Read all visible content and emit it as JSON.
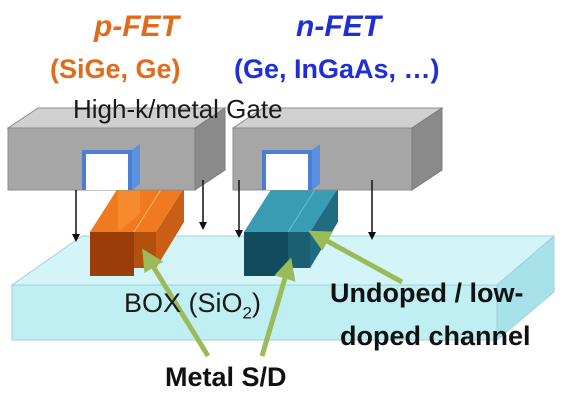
{
  "pfet": {
    "title": "p-FET",
    "materials": "(SiGe, Ge)"
  },
  "nfet": {
    "title": "n-FET",
    "materials": "(Ge, InGaAs, …)"
  },
  "gate": {
    "label": "High-k/metal Gate"
  },
  "box": {
    "label_prefix": "BOX (SiO",
    "label_sub": "2",
    "label_suffix": ")"
  },
  "channel": {
    "label_line1": "Undoped / low-",
    "label_line2": "doped channel"
  },
  "sd": {
    "label": "Metal S/D"
  },
  "colors": {
    "pfet_text": "#e26b1b",
    "nfet_text": "#1f2fd4",
    "gate_fill": "#a6a6a6",
    "gate_spacer": "#4a7fd4",
    "box_fill": "#bfeef3",
    "pfet_body": "#b24f0e",
    "nfet_body": "#1f6f86",
    "pointer_arrow": "#9bbb59"
  }
}
